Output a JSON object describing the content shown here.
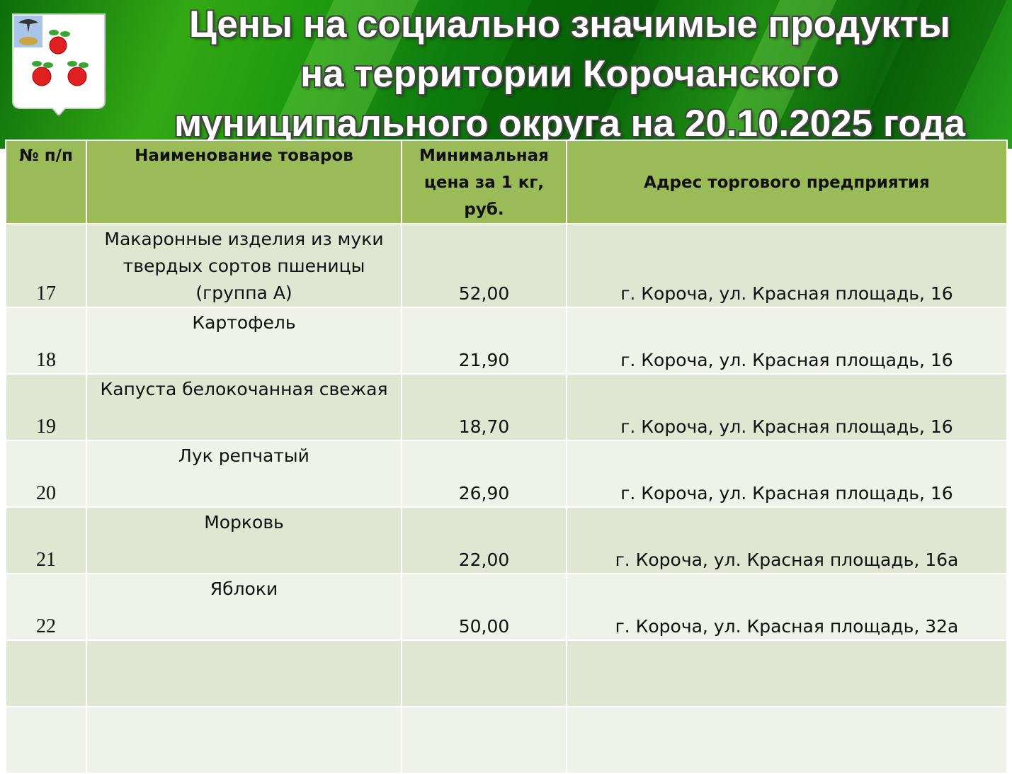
{
  "header": {
    "title_lines": [
      "Цены на социально значимые продукты",
      "на территории Корочанского",
      "муниципального округа на 20.10.2025 года"
    ],
    "emblem_icon": "coat-of-arms-with-apples"
  },
  "colors": {
    "header_bg": "#9bbb59",
    "row_odd": "#dfe7d3",
    "row_even": "#eef2e9",
    "banner": "#1f9a10"
  },
  "table": {
    "columns": [
      "№ п/п",
      "Наименование товаров",
      "Минимальная цена за 1 кг, руб.",
      "Адрес торгового предприятия"
    ],
    "rows": [
      {
        "num": "17",
        "name": "Макаронные изделия из муки твердых сортов пшеницы (группа А)",
        "price": "52,00",
        "address": "г. Короча, ул. Красная площадь, 16"
      },
      {
        "num": "18",
        "name": "Картофель",
        "price": "21,90",
        "address": "г. Короча, ул. Красная площадь, 16"
      },
      {
        "num": "19",
        "name": "Капуста белокочанная свежая",
        "price": "18,70",
        "address": "г. Короча, ул. Красная площадь, 16"
      },
      {
        "num": "20",
        "name": "Лук репчатый",
        "price": "26,90",
        "address": "г. Короча, ул. Красная площадь, 16"
      },
      {
        "num": "21",
        "name": "Морковь",
        "price": "22,00",
        "address": "г. Короча, ул. Красная площадь, 16а"
      },
      {
        "num": "22",
        "name": "Яблоки",
        "price": "50,00",
        "address": "г. Короча, ул. Красная площадь, 32а"
      },
      {
        "num": "",
        "name": "",
        "price": "",
        "address": ""
      },
      {
        "num": "",
        "name": "",
        "price": "",
        "address": ""
      }
    ]
  }
}
